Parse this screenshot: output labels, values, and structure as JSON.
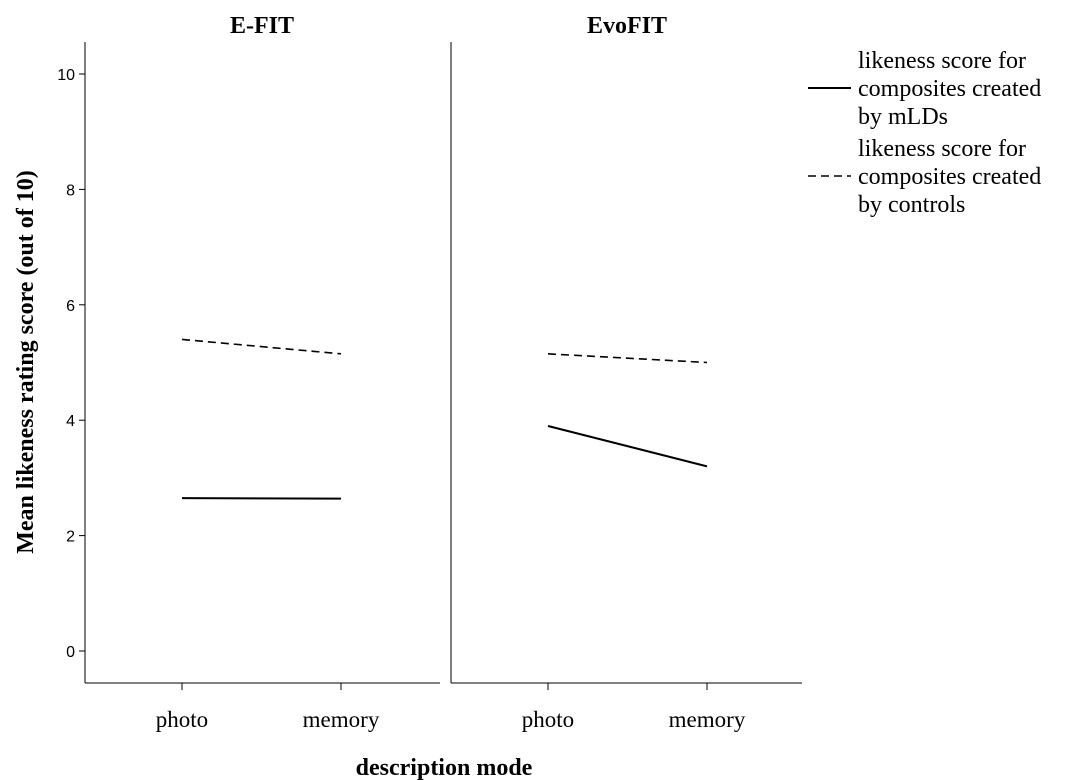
{
  "chart_data": {
    "type": "line",
    "xlabel": "description mode",
    "ylabel": "Mean likeness rating score (out of 10)",
    "ylim": [
      0,
      10
    ],
    "yticks": [
      "0",
      "2",
      "4",
      "6",
      "8",
      "10"
    ],
    "categories": [
      "photo",
      "memory"
    ],
    "grid": false,
    "legend_position": "right",
    "series_styles": {
      "mLDs": "solid",
      "controls": "dashed"
    },
    "legend": [
      {
        "key": "mLDs",
        "lines": [
          "likeness score for",
          "composites created",
          "by mLDs"
        ]
      },
      {
        "key": "controls",
        "lines": [
          "likeness score for",
          "composites created",
          "by controls"
        ]
      }
    ],
    "panels": [
      {
        "title": "E-FIT",
        "series": [
          {
            "key": "mLDs",
            "values": [
              2.65,
              2.64
            ]
          },
          {
            "key": "controls",
            "values": [
              5.4,
              5.15
            ]
          }
        ]
      },
      {
        "title": "EvoFIT",
        "series": [
          {
            "key": "mLDs",
            "values": [
              3.9,
              3.2
            ]
          },
          {
            "key": "controls",
            "values": [
              5.15,
              5.0
            ]
          }
        ]
      }
    ]
  }
}
